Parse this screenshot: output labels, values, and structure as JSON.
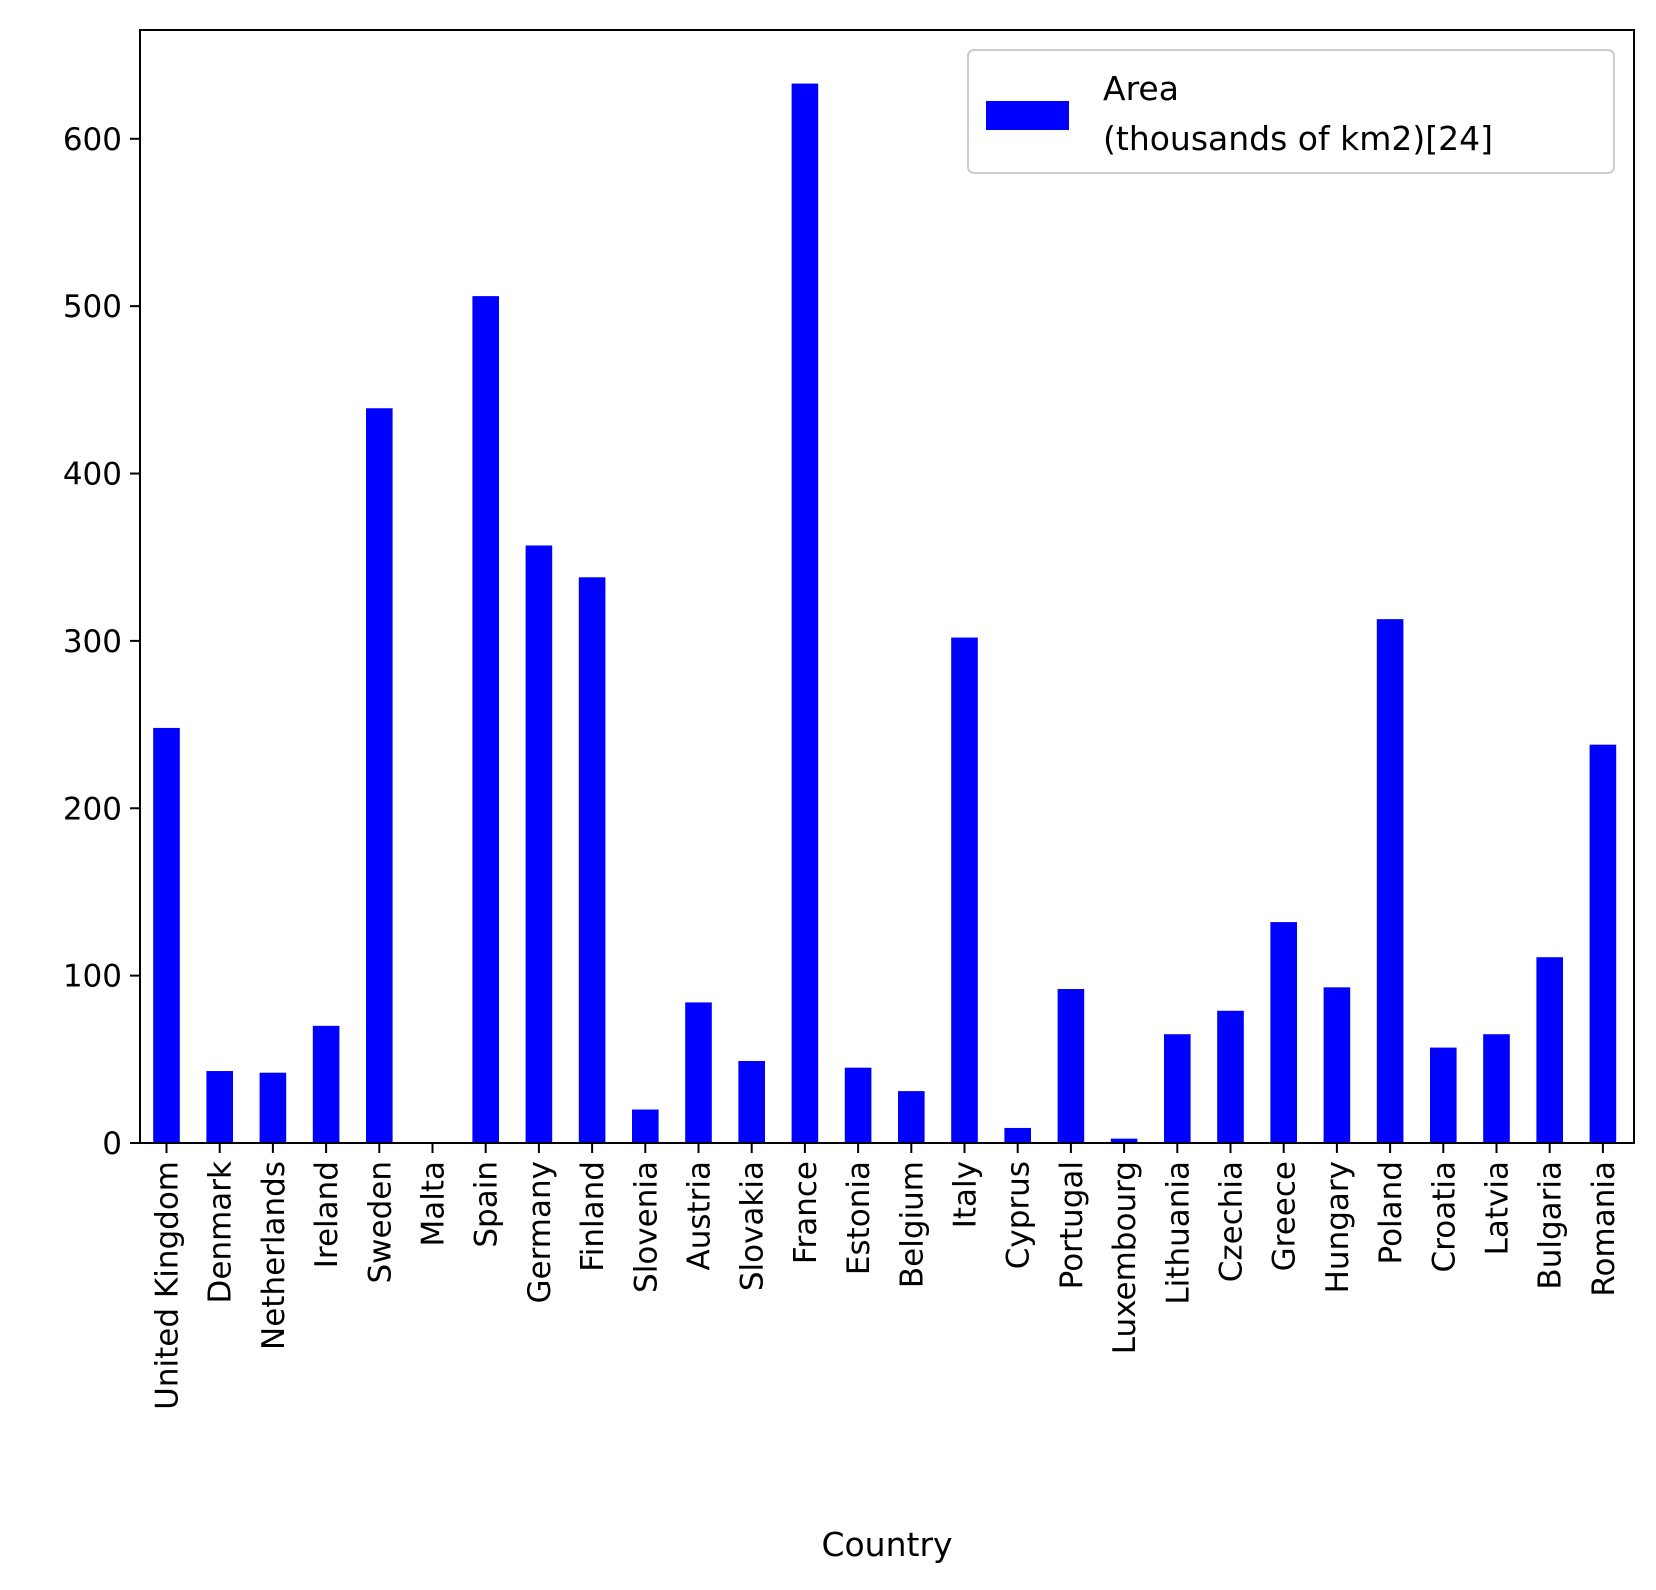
{
  "chart_data": {
    "type": "bar",
    "categories": [
      "United Kingdom",
      "Denmark",
      "Netherlands",
      "Ireland",
      "Sweden",
      "Malta",
      "Spain",
      "Germany",
      "Finland",
      "Slovenia",
      "Austria",
      "Slovakia",
      "France",
      "Estonia",
      "Belgium",
      "Italy",
      "Cyprus",
      "Portugal",
      "Luxembourg",
      "Lithuania",
      "Czechia",
      "Greece",
      "Hungary",
      "Poland",
      "Croatia",
      "Latvia",
      "Bulgaria",
      "Romania"
    ],
    "series": [
      {
        "name": "Area\n(thousands of km2)[24]",
        "values": [
          248,
          43,
          42,
          70,
          439,
          0.3,
          506,
          357,
          338,
          20,
          84,
          49,
          633,
          45,
          31,
          302,
          9,
          92,
          2.6,
          65,
          79,
          132,
          93,
          313,
          57,
          65,
          111,
          238
        ],
        "color": "#0000ff"
      }
    ],
    "legend": {
      "lines": [
        "Area",
        "(thousands of km2)[24]"
      ],
      "position": "top-right"
    },
    "xlabel": "Country",
    "ylabel": "",
    "ylim": [
      0,
      665
    ],
    "yticks": [
      0,
      100,
      200,
      300,
      400,
      500,
      600
    ],
    "grid": false
  }
}
